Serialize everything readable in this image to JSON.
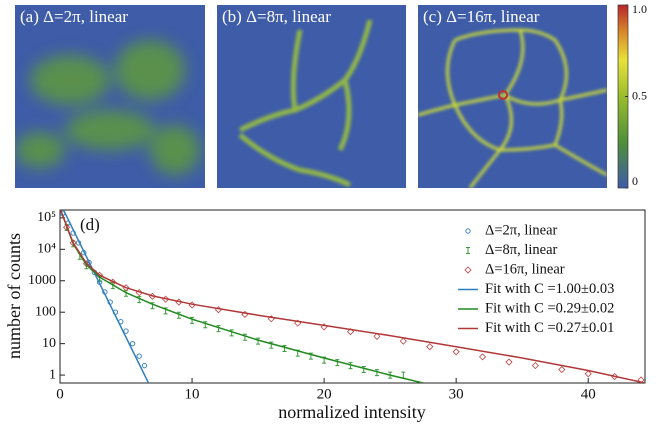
{
  "chart_data": [
    {
      "type": "heatmap",
      "panels": [
        {
          "label": "(a) Δ=2π, linear"
        },
        {
          "label": "(b) Δ=8π, linear"
        },
        {
          "label": "(c) Δ=16π, linear"
        }
      ],
      "clim": [
        0,
        1
      ],
      "cticks": [
        {
          "value": 1,
          "label": "1.0"
        },
        0.5,
        0
      ]
    },
    {
      "type": "scatter",
      "panel_label": "(d)",
      "xlabel": "normalized intensity",
      "ylabel": "number of counts",
      "log_y": true,
      "xlim": [
        0,
        44.3
      ],
      "ylim": [
        0.56,
        178000
      ],
      "xticks": [
        0,
        10,
        20,
        30,
        40
      ],
      "yticks": [
        {
          "value": 100000,
          "label": "10⁵"
        },
        {
          "value": 10000,
          "label": "10⁴"
        },
        1000,
        100,
        10,
        1
      ],
      "series": [
        {
          "name": "Δ=2π, linear",
          "marker": "circle",
          "color": "#3f86c4",
          "x": [
            0.2,
            0.6,
            1.0,
            1.4,
            1.8,
            2.2,
            2.6,
            3.0,
            3.4,
            3.8,
            4.2,
            4.6,
            5.0,
            5.5,
            6.0,
            6.4
          ],
          "values": [
            140000,
            68000,
            33000,
            16000,
            7800,
            3800,
            1850,
            900,
            440,
            210,
            100,
            50,
            25,
            10,
            4,
            2
          ]
        },
        {
          "name": "Δ=8π, linear",
          "marker": "ibar",
          "color": "#3a9a3a",
          "x": [
            0.5,
            1,
            1.5,
            2,
            3,
            4,
            5,
            6,
            7,
            8,
            9,
            10,
            11,
            12,
            13,
            14,
            15,
            16,
            17,
            18,
            19,
            20,
            21,
            22,
            23,
            24,
            25,
            26
          ],
          "values": [
            50000,
            15000,
            6000,
            3000,
            1200,
            700,
            400,
            250,
            160,
            110,
            80,
            55,
            40,
            30,
            22,
            16,
            12,
            9,
            7,
            5,
            4,
            3,
            2.5,
            2,
            1.5,
            1.2,
            1,
            1
          ]
        },
        {
          "name": "Δ=16π, linear",
          "marker": "diamond",
          "color": "#c04040",
          "x": [
            0.5,
            1,
            2,
            3,
            4,
            5,
            6,
            7,
            8,
            9,
            10,
            12,
            14,
            16,
            18,
            20,
            22,
            24,
            26,
            28,
            30,
            32,
            34,
            36,
            38,
            40,
            42,
            44
          ],
          "values": [
            50000,
            16000,
            3500,
            1500,
            900,
            600,
            420,
            320,
            260,
            210,
            170,
            120,
            85,
            62,
            45,
            34,
            24,
            17,
            12,
            8,
            5.5,
            3.8,
            2.6,
            2,
            1.5,
            1.1,
            0.9,
            0.7
          ]
        },
        {
          "name": "Fit with C =1.00±0.03",
          "marker": "line",
          "color": "#2f7fc0",
          "x": [
            0,
            6.7
          ],
          "values": [
            300000,
            0.56
          ]
        },
        {
          "name": "Fit with C =0.29±0.02",
          "marker": "line",
          "color": "#1f8a1f",
          "x": [
            0,
            1,
            2,
            3,
            5,
            7,
            10,
            15,
            20,
            25,
            27.5
          ],
          "values": [
            200000,
            15000,
            3200,
            1300,
            420,
            180,
            60,
            13,
            3.5,
            1,
            0.56
          ]
        },
        {
          "name": "Fit with C =0.27±0.01",
          "marker": "line",
          "color": "#b03838",
          "x": [
            0,
            1,
            2,
            3,
            5,
            7,
            10,
            15,
            20,
            25,
            30,
            35,
            40,
            44.3
          ],
          "values": [
            200000,
            16000,
            3600,
            1500,
            600,
            330,
            180,
            80,
            38,
            18,
            8,
            3.5,
            1.4,
            0.56
          ]
        }
      ]
    }
  ]
}
